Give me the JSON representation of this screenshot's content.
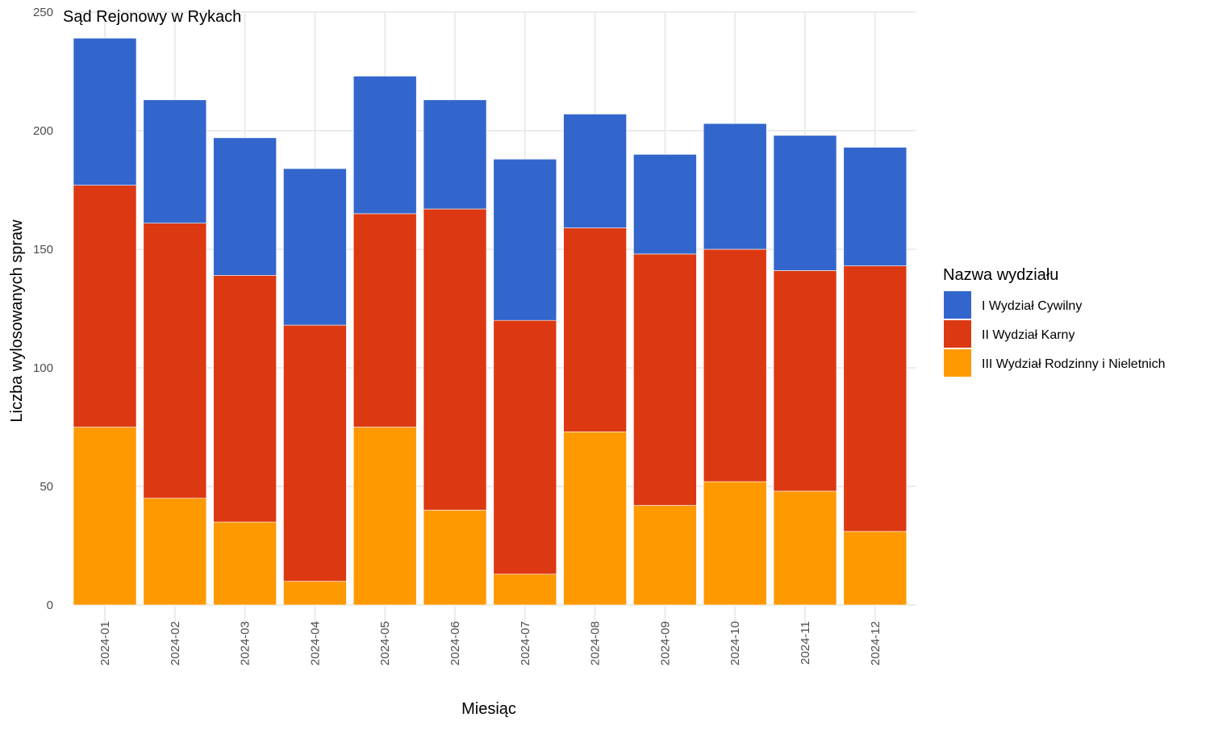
{
  "chart_data": {
    "type": "bar",
    "stacked": true,
    "title": "Sąd Rejonowy w Rykach",
    "xlabel": "Miesiąc",
    "ylabel": "Liczba wylosowanych spraw",
    "ylim": [
      0,
      250
    ],
    "yticks": [
      0,
      50,
      100,
      150,
      200,
      250
    ],
    "grid": true,
    "legend_position": "right",
    "legend_title": "Nazwa wydziału",
    "categories": [
      "2024-01",
      "2024-02",
      "2024-03",
      "2024-04",
      "2024-05",
      "2024-06",
      "2024-07",
      "2024-08",
      "2024-09",
      "2024-10",
      "2024-11",
      "2024-12"
    ],
    "series": [
      {
        "name": "III Wydział Rodzinny i Nieletnich",
        "color": "#FF9900",
        "values": [
          75,
          45,
          35,
          10,
          75,
          40,
          13,
          73,
          42,
          52,
          48,
          31
        ]
      },
      {
        "name": "II Wydział Karny",
        "color": "#DC3912",
        "values": [
          102,
          116,
          104,
          108,
          90,
          127,
          107,
          86,
          106,
          98,
          93,
          112
        ]
      },
      {
        "name": "I Wydział Cywilny",
        "color": "#3366CC",
        "values": [
          62,
          52,
          58,
          66,
          58,
          46,
          68,
          48,
          42,
          53,
          57,
          50
        ]
      }
    ],
    "legend_order": [
      "I Wydział Cywilny",
      "II Wydział Karny",
      "III Wydział Rodzinny i Nieletnich"
    ]
  }
}
